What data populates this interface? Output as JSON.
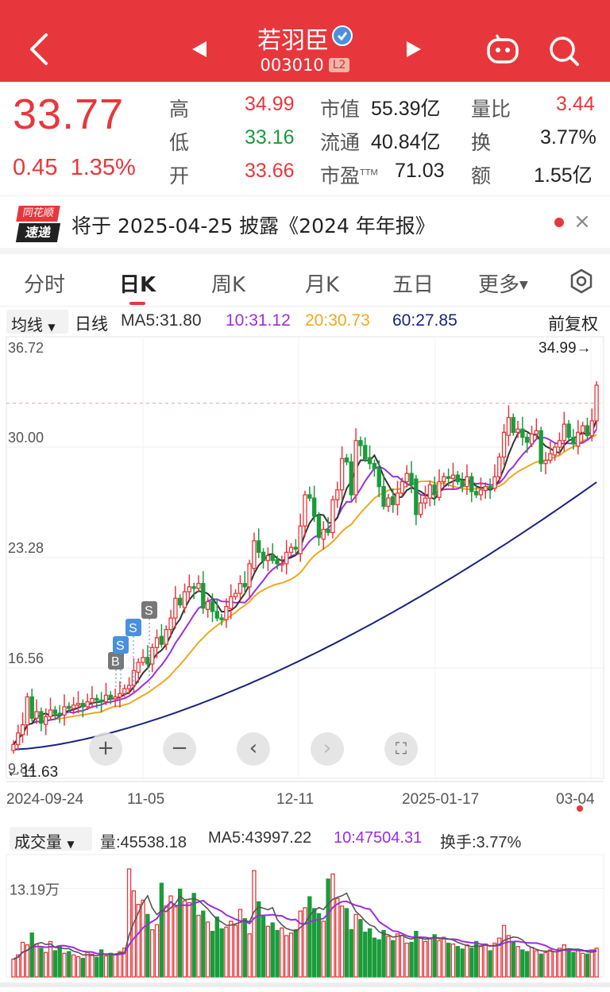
{
  "header": {
    "stock_name": "若羽臣",
    "stock_code": "003010",
    "level_badge": "L2",
    "colors": {
      "bar": "#e8373c"
    },
    "icons": [
      "back-icon",
      "prev-stock-icon",
      "next-stock-icon",
      "robot-icon",
      "search-icon",
      "verified-icon"
    ]
  },
  "quote": {
    "price": "33.77",
    "change": "0.45",
    "change_pct": "1.35%",
    "high_label": "高",
    "high": "34.99",
    "low_label": "低",
    "low": "33.16",
    "open_label": "开",
    "open": "33.66",
    "mcap_label": "市值",
    "mcap": "55.39亿",
    "float_label": "流通",
    "float": "40.84亿",
    "pe_label": "市盈",
    "pe_sup": "TTM",
    "pe": "71.03",
    "vr_label": "量比",
    "vr": "3.44",
    "turnover_label": "换",
    "turnover": "3.77%",
    "amount_label": "额",
    "amount": "1.55亿"
  },
  "notice": {
    "logo_top": "同花顺",
    "logo_bottom": "速递",
    "text": "将于 2025-04-25 披露《2024 年年报》",
    "close": "×"
  },
  "tabs": [
    "分时",
    "日K",
    "周K",
    "月K",
    "五日",
    "更多"
  ],
  "active_tab": "日K",
  "ma_bar": {
    "select": "均线",
    "period": "日线",
    "ma5": "MA5:31.80",
    "ma10": "10:31.12",
    "ma20": "20:30.73",
    "ma60": "60:27.85",
    "adjust": "前复权",
    "colors": {
      "ma5": "#333333",
      "ma10": "#9b2ee0",
      "ma20": "#f0a81c",
      "ma60": "#1a237e"
    }
  },
  "chart_data": {
    "type": "candlestick",
    "y_ticks": [
      "36.72",
      "30.00",
      "23.28",
      "16.56",
      "9.84"
    ],
    "ylim": [
      9.84,
      36.72
    ],
    "x_ticks": [
      "2024-09-24",
      "11-05",
      "12-11",
      "2025-01-17",
      "03-04"
    ],
    "max_label": "34.99→",
    "min_label": "←11.63",
    "markers": [
      "B",
      "S",
      "S",
      "S"
    ],
    "close": [
      11.9,
      12.6,
      13.1,
      14.8,
      13.5,
      13.9,
      13.2,
      13.6,
      14.0,
      13.8,
      13.7,
      14.2,
      14.1,
      14.3,
      14.4,
      14.2,
      14.5,
      14.7,
      14.6,
      14.5,
      14.9,
      14.7,
      14.8,
      15.0,
      15.3,
      15.5,
      16.4,
      16.9,
      17.2,
      16.8,
      17.8,
      18.4,
      18.0,
      18.9,
      19.6,
      20.8,
      20.4,
      21.2,
      21.5,
      21.4,
      21.7,
      20.2,
      20.6,
      20.0,
      19.6,
      19.5,
      20.3,
      20.9,
      21.1,
      21.7,
      21.5,
      22.9,
      24.3,
      23.6,
      23.1,
      23.4,
      23.1,
      22.9,
      22.9,
      23.6,
      23.9,
      23.8,
      25.2,
      27.1,
      26.9,
      25.8,
      24.5,
      25.0,
      24.8,
      26.8,
      27.4,
      29.3,
      29.1,
      27.1,
      30.4,
      30.1,
      29.3,
      29.0,
      28.7,
      27.6,
      26.4,
      26.9,
      26.5,
      27.2,
      27.9,
      28.4,
      27.7,
      25.9,
      26.6,
      26.9,
      27.7,
      27.1,
      27.9,
      28.2,
      28.1,
      28.3,
      27.9,
      27.6,
      28.2,
      27.3,
      27.1,
      27.4,
      27.6,
      27.5,
      28.2,
      29.4,
      30.9,
      31.8,
      30.9,
      31.1,
      30.6,
      30.3,
      30.8,
      31.0,
      29.0,
      29.2,
      29.6,
      30.0,
      30.4,
      31.4,
      30.6,
      30.2,
      30.9,
      31.3,
      30.7,
      31.6,
      33.77
    ],
    "ma_labels": [
      "MA5",
      "MA10",
      "MA20",
      "MA60"
    ]
  },
  "volume": {
    "select": "成交量",
    "amount_label": "量:45538.18",
    "ma5_label": "MA5:43997.22",
    "ma10_label": "10:47504.31",
    "turnover_label": "换手:3.77%",
    "y_tick": "13.19万",
    "values": [
      2.1,
      2.6,
      4.1,
      3.8,
      5.2,
      3.9,
      3.4,
      2.9,
      4.2,
      3.1,
      3.7,
      2.8,
      3.0,
      2.6,
      2.4,
      2.2,
      2.9,
      2.7,
      2.3,
      3.2,
      2.5,
      2.8,
      2.7,
      3.0,
      3.4,
      12.8,
      10.2,
      8.6,
      9.1,
      7.4,
      5.6,
      6.2,
      11.1,
      8.4,
      9.6,
      8.3,
      10.4,
      9.0,
      8.8,
      9.9,
      7.3,
      7.8,
      6.5,
      5.4,
      7.1,
      5.7,
      5.9,
      6.6,
      6.1,
      8.0,
      6.9,
      5.1,
      12.6,
      8.9,
      7.2,
      6.0,
      6.4,
      5.5,
      5.8,
      4.9,
      5.2,
      5.6,
      7.8,
      8.2,
      9.5,
      8.1,
      7.5,
      6.6,
      11.6,
      12.2,
      9.3,
      8.4,
      8.1,
      5.6,
      7.4,
      6.8,
      5.3,
      5.7,
      4.6,
      4.4,
      5.5,
      4.8,
      4.3,
      5.1,
      4.9,
      4.0,
      4.1,
      5.4,
      4.6,
      4.2,
      4.5,
      5.0,
      4.3,
      4.7,
      4.0,
      3.9,
      3.6,
      3.3,
      3.8,
      3.4,
      4.2,
      3.6,
      3.9,
      3.1,
      4.0,
      4.6,
      6.1,
      4.9,
      4.1,
      3.6,
      3.2,
      3.0,
      3.5,
      3.1,
      2.7,
      2.9,
      3.2,
      3.0,
      3.4,
      3.8,
      3.3,
      2.9,
      3.1,
      2.8,
      2.7,
      3.2,
      3.4
    ]
  }
}
